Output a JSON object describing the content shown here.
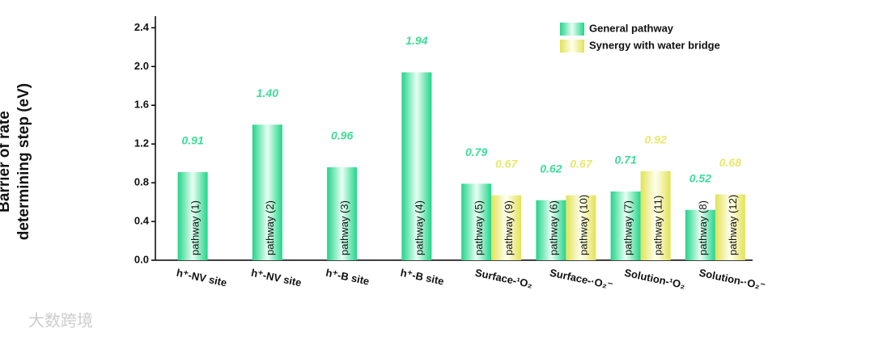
{
  "chart_data": {
    "type": "bar",
    "y_label": [
      "Barrier of rate",
      "determining step (eV)"
    ],
    "categories": [
      "h⁺-NV site",
      "h⁺-NV site",
      "h⁺-B site",
      "h⁺-B site",
      "Surface-¹O₂",
      "Surface-·O₂⁻",
      "Solution-¹O₂",
      "Solution-·O₂⁻"
    ],
    "series": [
      {
        "name": "General pathway",
        "color": "#3ddc97",
        "values": [
          0.91,
          1.4,
          0.96,
          1.94,
          0.79,
          0.62,
          0.71,
          0.52
        ],
        "value_labels": [
          "0.91",
          "1.40",
          "0.96",
          "1.94",
          "0.79",
          "0.62",
          "0.71",
          "0.52"
        ],
        "bar_labels": [
          "pathway (1)",
          "pathway (2)",
          "pathway (3)",
          "pathway (4)",
          "pathway (5)",
          "pathway (6)",
          "pathway (7)",
          "pathway (8)"
        ]
      },
      {
        "name": "Synergy with water bridge",
        "color": "#e8e86a",
        "values": [
          null,
          null,
          null,
          null,
          0.67,
          0.67,
          0.92,
          0.68
        ],
        "value_labels": [
          null,
          null,
          null,
          null,
          "0.67",
          "0.67",
          "0.92",
          "0.68"
        ],
        "bar_labels": [
          null,
          null,
          null,
          null,
          "pathway (9)",
          "pathway (10)",
          "pathway (11)",
          "pathway (12)"
        ]
      }
    ],
    "ylim": [
      0,
      2.52
    ],
    "yticks": [
      {
        "value": 0,
        "label": "0.0"
      },
      0.4,
      0.8,
      1.2,
      1.6,
      {
        "value": 2,
        "label": "2.0"
      },
      2.4
    ],
    "legend": "top-right",
    "watermark": "大数跨境"
  }
}
